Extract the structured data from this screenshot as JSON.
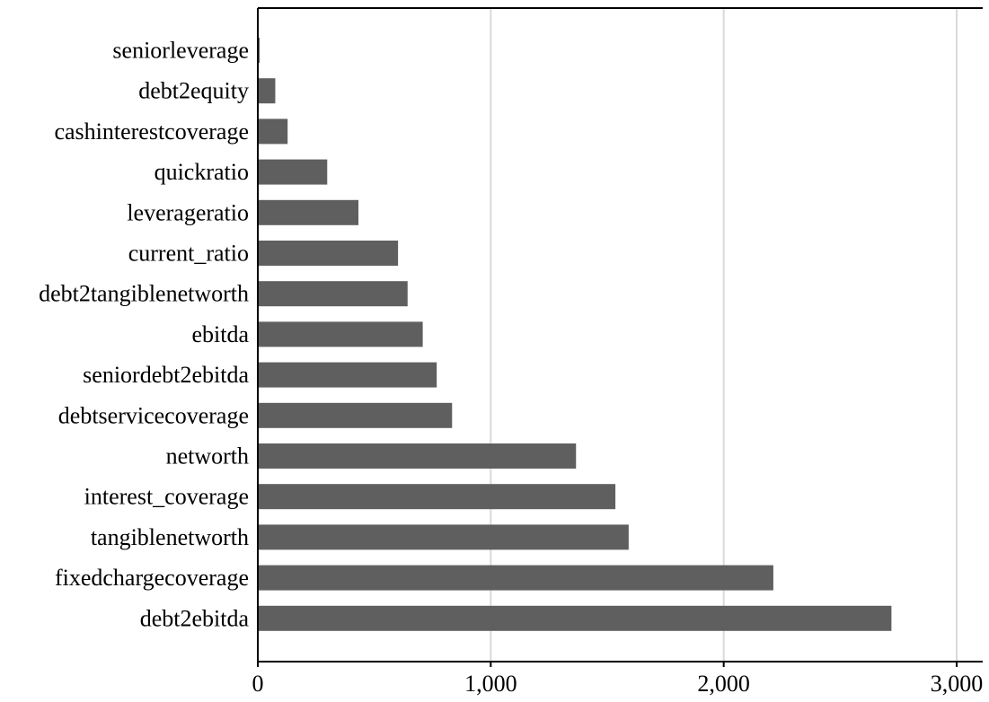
{
  "chart_data": {
    "type": "bar",
    "orientation": "horizontal",
    "categories": [
      "seniorleverage",
      "debt2equity",
      "cashinterestcoverage",
      "quickratio",
      "leverageratio",
      "current_ratio",
      "debt2tangiblenetworth",
      "ebitda",
      "seniordebt2ebitda",
      "debtservicecoverage",
      "networth",
      "interest_coverage",
      "tangiblenetworth",
      "fixedchargecoverage",
      "debt2ebitda"
    ],
    "values": [
      8,
      75,
      128,
      298,
      432,
      602,
      643,
      708,
      768,
      834,
      1366,
      1535,
      1592,
      2213,
      2720
    ],
    "xlim": [
      0,
      3000
    ],
    "xticks": [
      0,
      1000,
      2000,
      3000
    ],
    "xtick_labels": [
      "0",
      "1,000",
      "2,000",
      "3,000"
    ],
    "grid": "vertical",
    "bar_color": "#5f5f5f",
    "grid_color": "#dadada",
    "title": "",
    "xlabel": "",
    "ylabel": ""
  }
}
